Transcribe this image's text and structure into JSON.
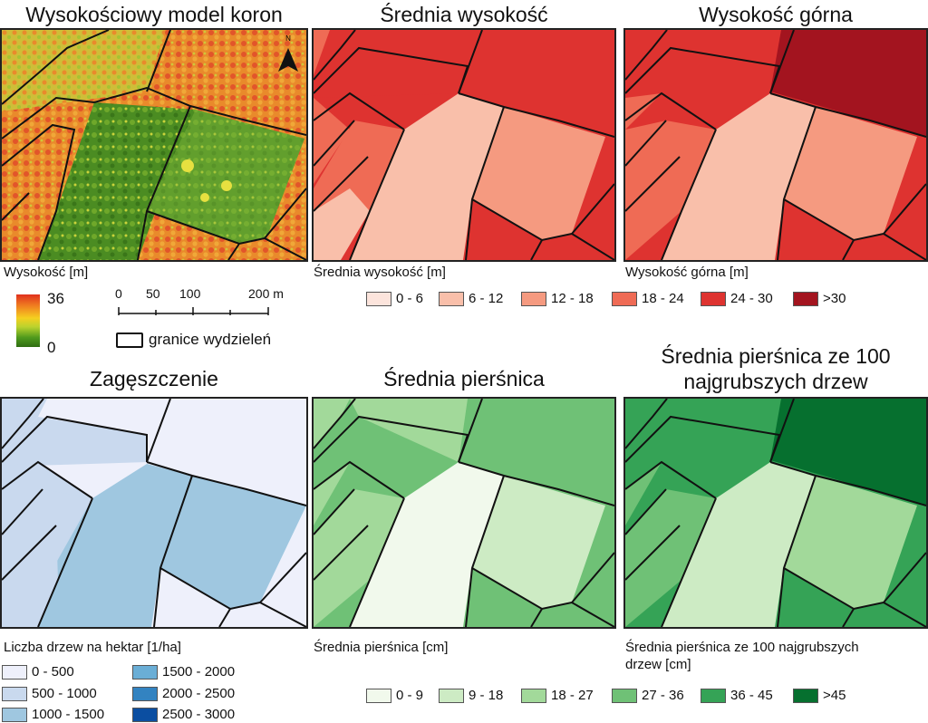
{
  "panels": [
    {
      "title": "Wysokościowy model koron",
      "caption": "Wysokość [m]"
    },
    {
      "title": "Średnia wysokość",
      "caption": "Średnia wysokość [m]"
    },
    {
      "title": "Wysokość górna",
      "caption": "Wysokość górna [m]"
    },
    {
      "title": "Zagęszczenie",
      "caption": "Liczba drzew na hektar [1/ha]"
    },
    {
      "title": "Średnia pierśnica",
      "caption": "Średnia pierśnica [cm]"
    },
    {
      "title_line1": "Średnia pierśnica ze 100",
      "title_line2": "najgrubszych drzew",
      "caption_line1": "Średnia pierśnica ze 100 najgrubszych",
      "caption_line2": "drzew [cm]"
    }
  ],
  "chm_legend": {
    "max": "36",
    "min": "0"
  },
  "scalebar": {
    "ticks": [
      "0",
      "50",
      "100",
      "200 m"
    ],
    "boundary_label": "granice wydzieleń"
  },
  "north_label": "N",
  "height_legend": {
    "classes": [
      {
        "label": "0 - 6",
        "color": "#fce4dc"
      },
      {
        "label": "6 - 12",
        "color": "#f9bfaa"
      },
      {
        "label": "12 - 18",
        "color": "#f59a80"
      },
      {
        "label": "18 - 24",
        "color": "#ef6b55"
      },
      {
        "label": "24 - 30",
        "color": "#de3330"
      },
      {
        "label": ">30",
        "color": "#a3141f"
      }
    ]
  },
  "density_legend": {
    "classes": [
      {
        "label": "0 - 500",
        "color": "#eef0fb"
      },
      {
        "label": "500 - 1000",
        "color": "#c9d9ee"
      },
      {
        "label": "1000 - 1500",
        "color": "#9fc7e0"
      },
      {
        "label": "1500 - 2000",
        "color": "#6aaed6"
      },
      {
        "label": "2000 - 2500",
        "color": "#3383c1"
      },
      {
        "label": "2500 - 3000",
        "color": "#0b4ea1"
      }
    ]
  },
  "dbh_legend": {
    "classes": [
      {
        "label": "0 - 9",
        "color": "#f1f9ec"
      },
      {
        "label": "9 - 18",
        "color": "#cdebc4"
      },
      {
        "label": "18 - 27",
        "color": "#a2d99a"
      },
      {
        "label": "27 - 36",
        "color": "#6fc176"
      },
      {
        "label": "36 - 45",
        "color": "#35a356"
      },
      {
        "label": ">45",
        "color": "#06702f"
      }
    ]
  }
}
